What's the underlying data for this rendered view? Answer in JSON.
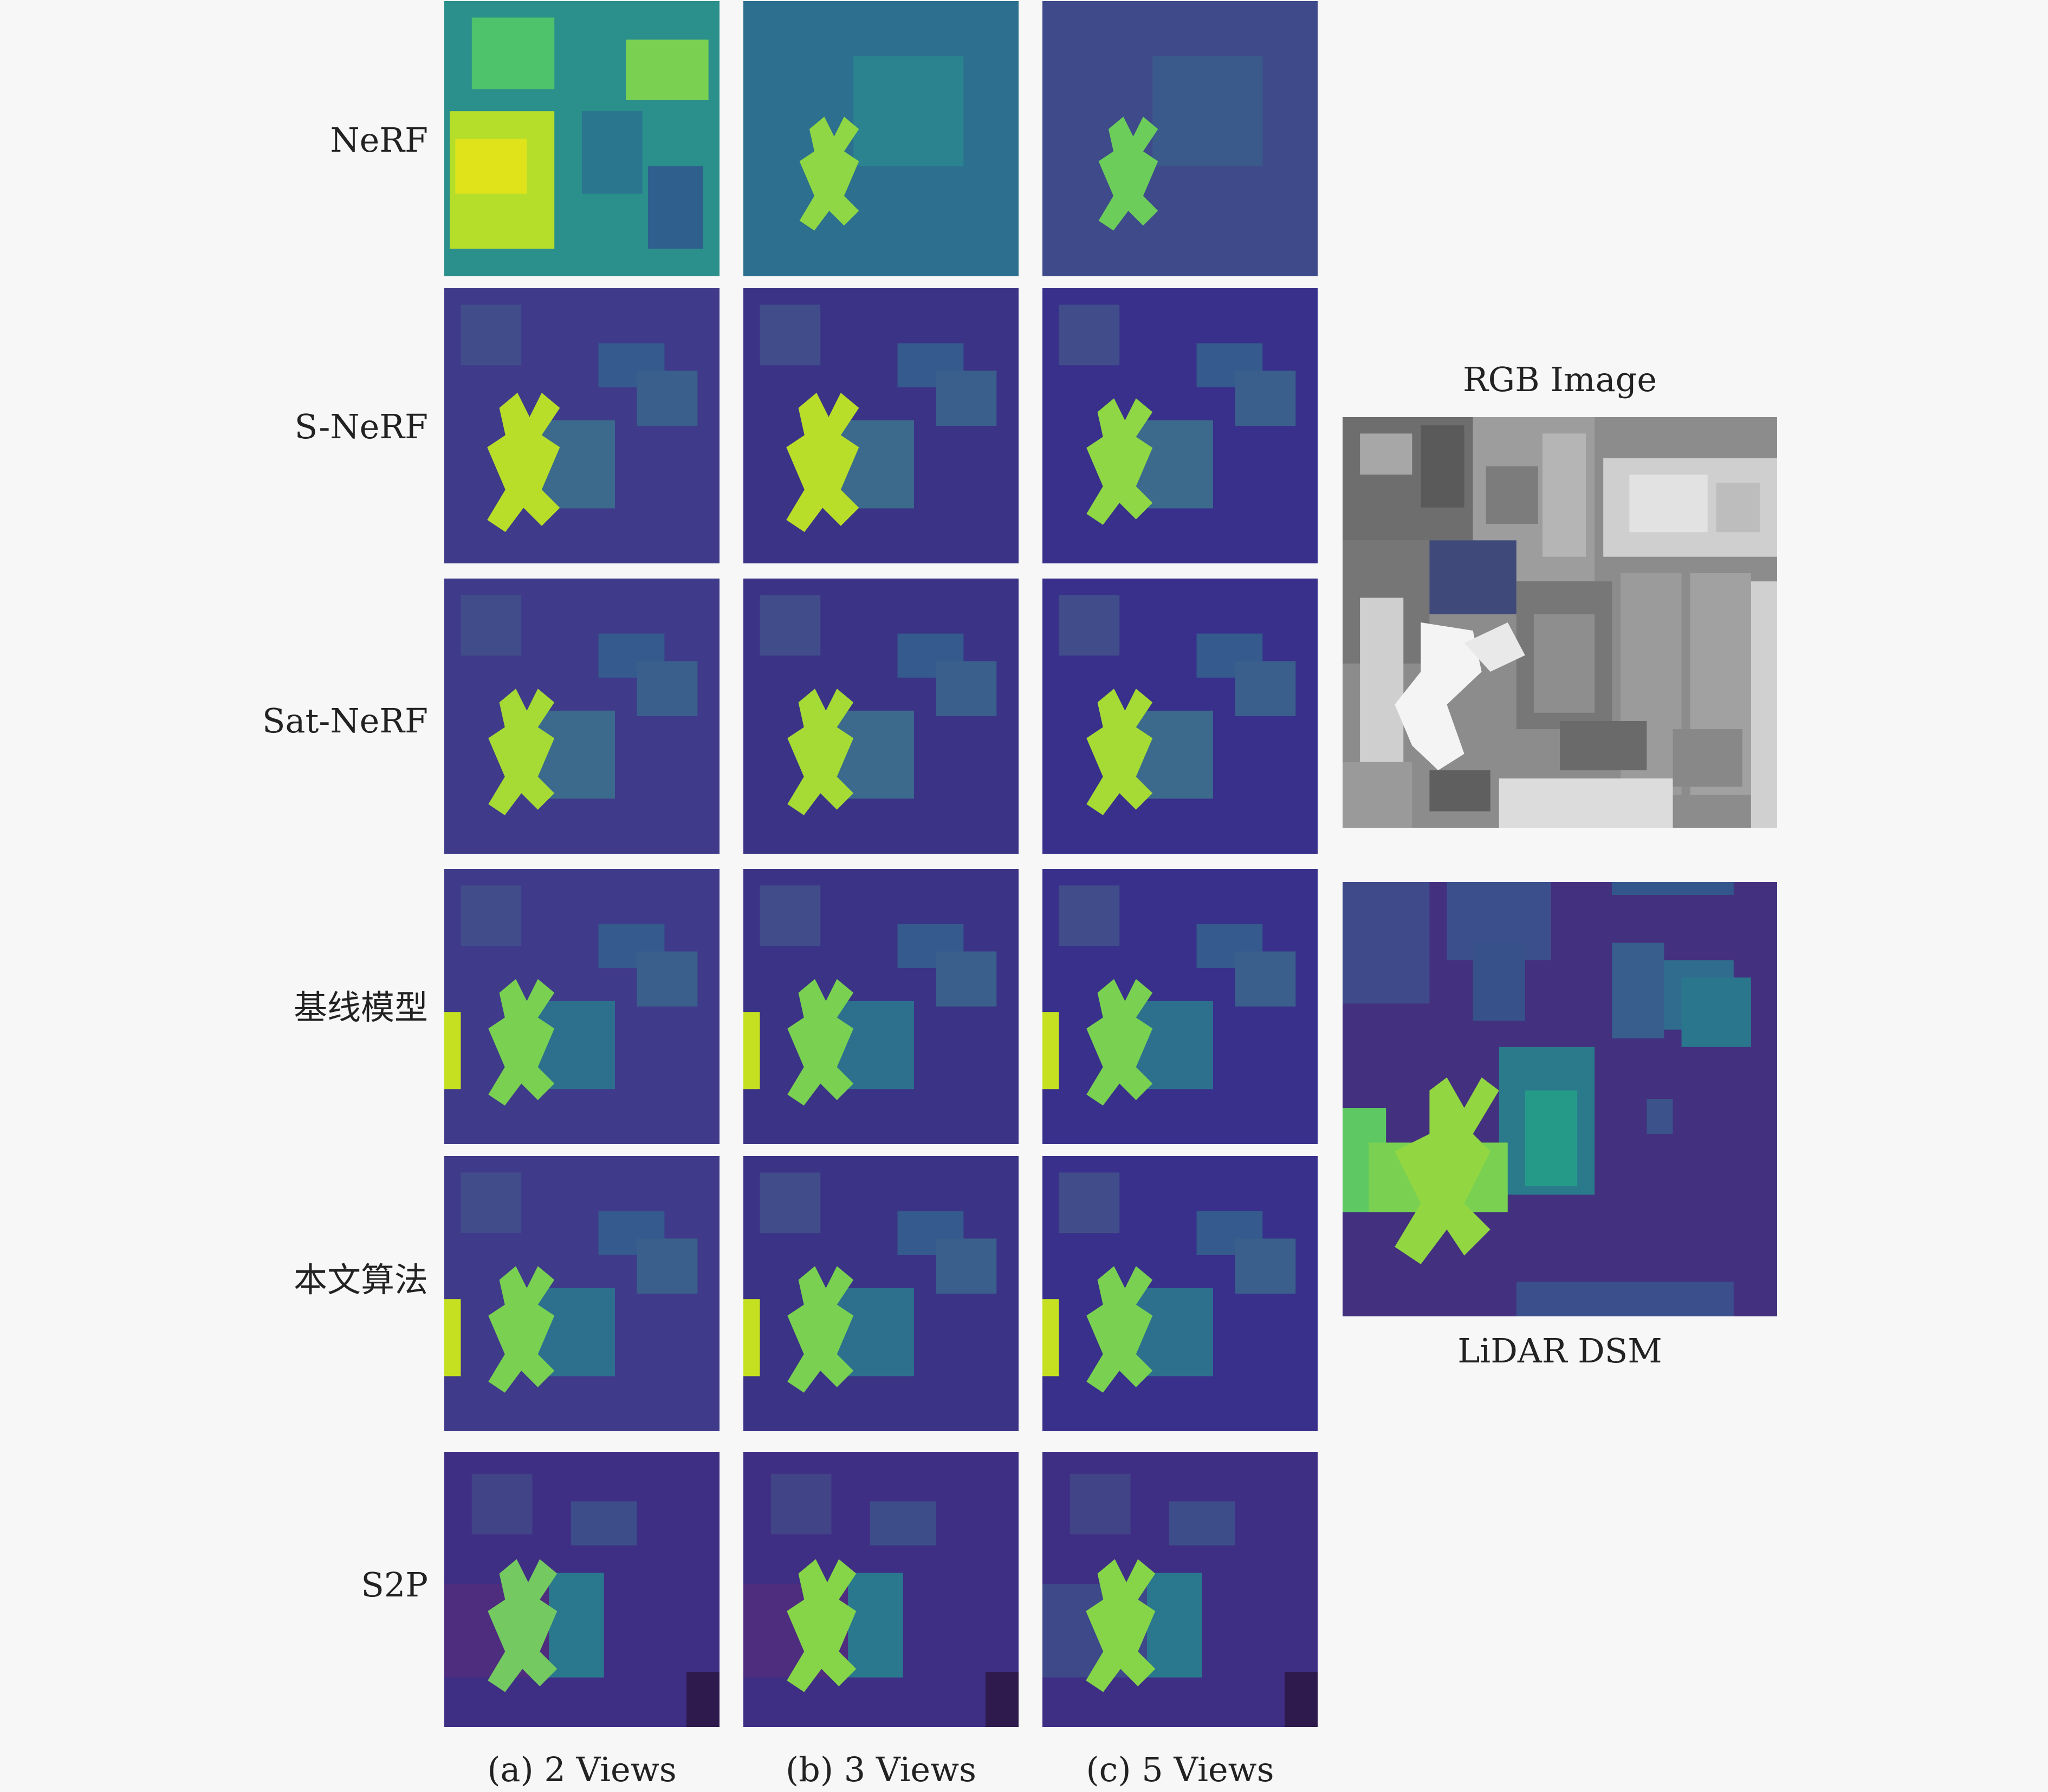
{
  "figure": {
    "rows": [
      {
        "label": "NeRF"
      },
      {
        "label": "S-NeRF"
      },
      {
        "label": "Sat-NeRF"
      },
      {
        "label": "基线模型"
      },
      {
        "label": "本文算法"
      },
      {
        "label": "S2P"
      }
    ],
    "columns": [
      {
        "label": "(a) 2 Views"
      },
      {
        "label": "(b) 3 Views"
      },
      {
        "label": "(c) 5 Views"
      }
    ],
    "reference": {
      "rgb_label": "RGB Image",
      "lidar_label": "LiDAR DSM"
    },
    "colors": {
      "background": "#f7f7f7",
      "dsm_low": "#3a2c7a",
      "dsm_mid": "#2a788e",
      "dsm_high": "#d8e219"
    }
  }
}
